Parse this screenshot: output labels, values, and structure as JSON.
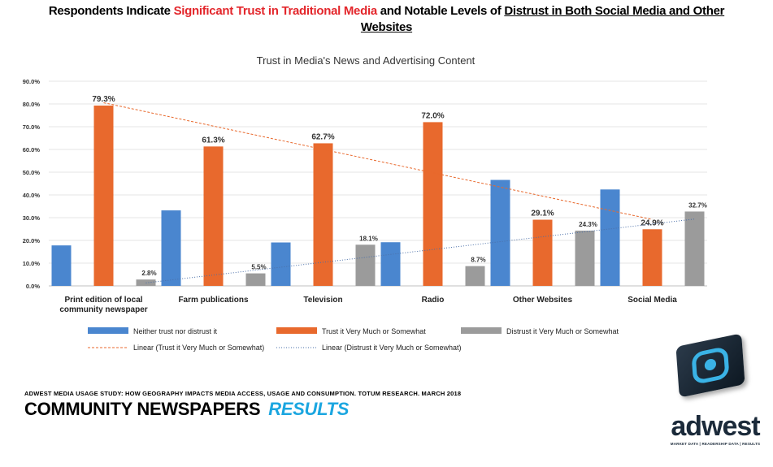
{
  "headline": {
    "part1": "Respondents Indicate ",
    "part2": "Significant Trust in Traditional Media",
    "part3": " and Notable Levels of ",
    "part4": "Distrust in Both Social Media and Other",
    "part5": "Websites"
  },
  "footer": {
    "note": "ADWEST MEDIA USAGE STUDY: HOW GEOGRAPHY IMPACTS MEDIA ACCESS, USAGE AND CONSUMPTION. TOTUM RESEARCH. MARCH 2018",
    "brand": "COMMUNITY NEWSPAPERS",
    "brand_accent": "RESULTS"
  },
  "logo": {
    "word": "adwest",
    "tagline": "MARKET DATA | READERSHIP DATA | RESULTS"
  },
  "chart_data": {
    "type": "bar",
    "title": "Trust in Media's News and Advertising Content",
    "categories": [
      "Print edition of local community newspaper",
      "Farm publications",
      "Television",
      "Radio",
      "Other Websites",
      "Social Media"
    ],
    "category_lines": [
      [
        "Print edition of local",
        "community newspaper"
      ],
      [
        "Farm publications"
      ],
      [
        "Television"
      ],
      [
        "Radio"
      ],
      [
        "Other Websites"
      ],
      [
        "Social Media"
      ]
    ],
    "ylim": [
      0,
      90
    ],
    "yticks": [
      0,
      10,
      20,
      30,
      40,
      50,
      60,
      70,
      80,
      90
    ],
    "ytick_labels": [
      "0.0%",
      "10.0%",
      "20.0%",
      "30.0%",
      "40.0%",
      "50.0%",
      "60.0%",
      "70.0%",
      "80.0%",
      "90.0%"
    ],
    "grid": true,
    "legend_position": "bottom",
    "series": [
      {
        "name": "Neither trust nor distrust it",
        "color": "#4a86cf",
        "values": [
          17.8,
          33.2,
          19.1,
          19.2,
          46.6,
          42.4
        ],
        "labels": [
          "",
          "",
          "",
          "",
          "",
          ""
        ]
      },
      {
        "name": "Trust it Very Much or Somewhat",
        "color": "#e8692d",
        "values": [
          79.3,
          61.3,
          62.7,
          72.0,
          29.1,
          24.9
        ],
        "labels": [
          "79.3%",
          "61.3%",
          "62.7%",
          "72.0%",
          "29.1%",
          "24.9%"
        ]
      },
      {
        "name": "Distrust it Very Much or Somewhat",
        "color": "#9b9b9b",
        "values": [
          2.8,
          5.5,
          18.1,
          8.7,
          24.3,
          32.7
        ],
        "labels": [
          "2.8%",
          "5.5%",
          "18.1%",
          "8.7%",
          "24.3%",
          "32.7%"
        ]
      }
    ],
    "trendlines": [
      {
        "name": "Linear (Trust it Very Much or Somewhat)",
        "color": "#e8692d",
        "series": 1
      },
      {
        "name": "Linear (Distrust it Very Much or Somewhat)",
        "color": "#4a6fa8",
        "series": 2
      }
    ]
  }
}
